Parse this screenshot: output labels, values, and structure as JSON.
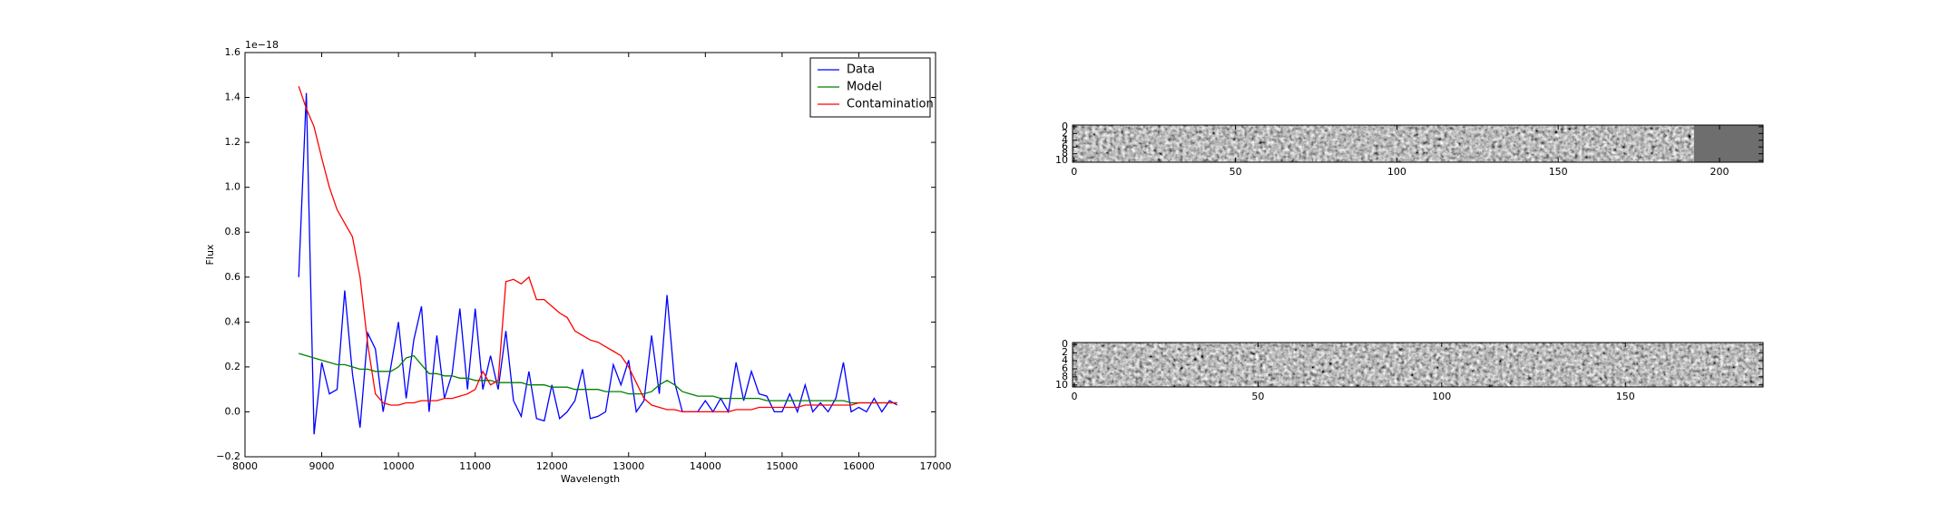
{
  "chart_data": [
    {
      "type": "line",
      "xlabel": "Wavelength",
      "ylabel": "Flux",
      "offset_text": "1e−18",
      "x": [
        8700,
        8800,
        8900,
        9000,
        9100,
        9200,
        9300,
        9400,
        9500,
        9600,
        9700,
        9800,
        9900,
        10000,
        10100,
        10200,
        10300,
        10400,
        10500,
        10600,
        10700,
        10800,
        10900,
        11000,
        11100,
        11200,
        11300,
        11400,
        11500,
        11600,
        11700,
        11800,
        11900,
        12000,
        12100,
        12200,
        12300,
        12400,
        12500,
        12600,
        12700,
        12800,
        12900,
        13000,
        13100,
        13200,
        13300,
        13400,
        13500,
        13600,
        13700,
        13800,
        13900,
        14000,
        14100,
        14200,
        14300,
        14400,
        14500,
        14600,
        14700,
        14800,
        14900,
        15000,
        15100,
        15200,
        15300,
        15400,
        15500,
        15600,
        15700,
        15800,
        15900,
        16000,
        16100,
        16200,
        16300,
        16400,
        16500
      ],
      "series": [
        {
          "name": "Data",
          "color": "#0000ff",
          "values": [
            0.6,
            1.42,
            -0.1,
            0.22,
            0.08,
            0.1,
            0.54,
            0.17,
            -0.07,
            0.35,
            0.28,
            0.0,
            0.2,
            0.4,
            0.06,
            0.32,
            0.47,
            0.0,
            0.34,
            0.06,
            0.17,
            0.46,
            0.1,
            0.46,
            0.1,
            0.25,
            0.1,
            0.36,
            0.05,
            -0.02,
            0.18,
            -0.03,
            -0.04,
            0.12,
            -0.03,
            0.0,
            0.05,
            0.19,
            -0.03,
            -0.02,
            0.0,
            0.21,
            0.12,
            0.23,
            0.0,
            0.05,
            0.34,
            0.08,
            0.52,
            0.13,
            0.0,
            0.0,
            0.0,
            0.05,
            0.0,
            0.06,
            0.0,
            0.22,
            0.05,
            0.18,
            0.08,
            0.07,
            0.0,
            0.0,
            0.08,
            0.0,
            0.12,
            0.0,
            0.04,
            0.0,
            0.06,
            0.22,
            0.0,
            0.02,
            0.0,
            0.06,
            0.0,
            0.05,
            0.03
          ]
        },
        {
          "name": "Model",
          "color": "#008000",
          "values": [
            0.26,
            0.25,
            0.24,
            0.23,
            0.22,
            0.21,
            0.21,
            0.2,
            0.19,
            0.19,
            0.18,
            0.18,
            0.18,
            0.2,
            0.24,
            0.25,
            0.21,
            0.17,
            0.17,
            0.16,
            0.16,
            0.15,
            0.15,
            0.14,
            0.14,
            0.14,
            0.13,
            0.13,
            0.13,
            0.13,
            0.12,
            0.12,
            0.12,
            0.11,
            0.11,
            0.11,
            0.1,
            0.1,
            0.1,
            0.1,
            0.09,
            0.09,
            0.09,
            0.08,
            0.08,
            0.08,
            0.09,
            0.12,
            0.14,
            0.12,
            0.09,
            0.08,
            0.07,
            0.07,
            0.07,
            0.06,
            0.06,
            0.06,
            0.06,
            0.06,
            0.06,
            0.05,
            0.05,
            0.05,
            0.05,
            0.05,
            0.05,
            0.05,
            0.05,
            0.05,
            0.05,
            0.05,
            0.04,
            0.04,
            0.04,
            0.04,
            0.04,
            0.04,
            0.04
          ]
        },
        {
          "name": "Contamination",
          "color": "#ff0000",
          "values": [
            1.45,
            1.35,
            1.27,
            1.13,
            1.0,
            0.9,
            0.84,
            0.78,
            0.6,
            0.3,
            0.08,
            0.04,
            0.03,
            0.03,
            0.04,
            0.04,
            0.05,
            0.05,
            0.05,
            0.06,
            0.06,
            0.07,
            0.08,
            0.1,
            0.18,
            0.12,
            0.14,
            0.58,
            0.59,
            0.57,
            0.6,
            0.5,
            0.5,
            0.47,
            0.44,
            0.42,
            0.36,
            0.34,
            0.32,
            0.31,
            0.29,
            0.27,
            0.25,
            0.2,
            0.13,
            0.06,
            0.03,
            0.02,
            0.01,
            0.01,
            0.0,
            0.0,
            0.0,
            0.0,
            0.0,
            0.0,
            0.0,
            0.01,
            0.01,
            0.01,
            0.02,
            0.02,
            0.02,
            0.02,
            0.02,
            0.02,
            0.03,
            0.03,
            0.03,
            0.03,
            0.03,
            0.03,
            0.03,
            0.04,
            0.04,
            0.04,
            0.04,
            0.04,
            0.04
          ]
        }
      ],
      "xlim": [
        8000,
        17000
      ],
      "xticks": [
        8000,
        9000,
        10000,
        11000,
        12000,
        13000,
        14000,
        15000,
        16000,
        17000
      ],
      "ylim": [
        -0.2,
        1.6
      ],
      "yticks": [
        {
          "value": -0.2,
          "label": "−0.2"
        },
        {
          "value": 0,
          "label": "0.0"
        },
        {
          "value": 0.2,
          "label": "0.2"
        },
        {
          "value": 0.4,
          "label": "0.4"
        },
        {
          "value": 0.6,
          "label": "0.6"
        },
        {
          "value": 0.8,
          "label": "0.8"
        },
        {
          "value": 1.0,
          "label": "1.0"
        },
        {
          "value": 1.2,
          "label": "1.2"
        },
        {
          "value": 1.4,
          "label": "1.4"
        },
        {
          "value": 1.6,
          "label": "1.6"
        }
      ],
      "legend": "upper right"
    },
    {
      "type": "image",
      "colormap": "gray",
      "xlim": [
        -0.5,
        213.5
      ],
      "ylim": [
        10.5,
        -0.5
      ],
      "xticks": [
        0,
        50,
        100,
        150,
        200
      ],
      "yticks": [
        0,
        2,
        4,
        6,
        8,
        10
      ]
    },
    {
      "type": "image",
      "colormap": "gray",
      "xlim": [
        -0.5,
        187.5
      ],
      "ylim": [
        10.5,
        -0.5
      ],
      "xticks": [
        0,
        50,
        100,
        150
      ],
      "yticks": [
        0,
        2,
        4,
        6,
        8,
        10
      ]
    }
  ]
}
